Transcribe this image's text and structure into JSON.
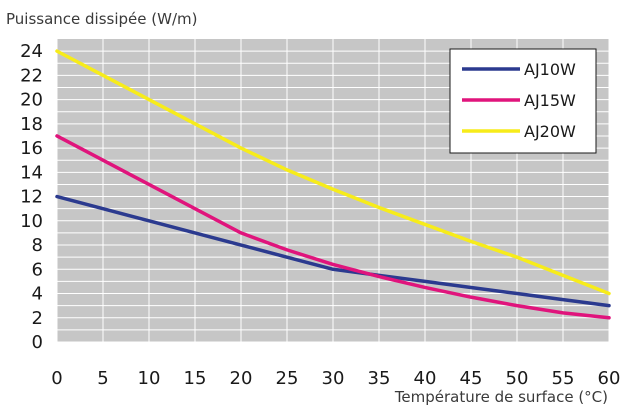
{
  "chart_data": {
    "type": "line",
    "title": "",
    "ylabel": "Puissance dissipée (W/m)",
    "xlabel": "Température de surface (°C)",
    "x": [
      0,
      5,
      10,
      15,
      20,
      25,
      30,
      35,
      40,
      45,
      50,
      55,
      60
    ],
    "xlim": [
      0,
      60
    ],
    "ylim": [
      0,
      25
    ],
    "xticks": [
      "0",
      "5",
      "10",
      "15",
      "20",
      "25",
      "30",
      "35",
      "40",
      "45",
      "50",
      "55",
      "60"
    ],
    "yticks": [
      "0",
      "2",
      "4",
      "6",
      "8",
      "10",
      "12",
      "14",
      "16",
      "18",
      "20",
      "22",
      "24"
    ],
    "grid": true,
    "legend_position": "top-right",
    "series": [
      {
        "name": "AJ10W",
        "color": "#2b3a8f",
        "values": [
          12,
          11,
          10,
          9,
          8,
          7,
          6,
          5.5,
          5,
          4.5,
          4,
          3.5,
          3
        ]
      },
      {
        "name": "AJ15W",
        "color": "#e0147c",
        "values": [
          17,
          15,
          13,
          11,
          9,
          7.6,
          6.4,
          5.4,
          4.5,
          3.7,
          3,
          2.4,
          2
        ]
      },
      {
        "name": "AJ20W",
        "color": "#f7ec1a",
        "values": [
          24,
          22,
          20,
          18,
          16,
          14.2,
          12.6,
          11.1,
          9.7,
          8.3,
          7,
          5.5,
          4
        ]
      }
    ]
  }
}
